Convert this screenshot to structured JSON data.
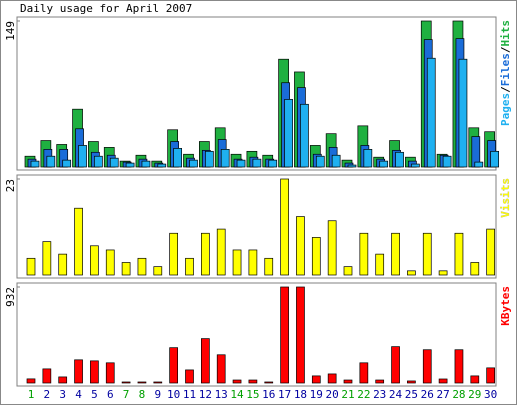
{
  "chart_data": [
    {
      "type": "bar",
      "title": "Daily usage for April 2007",
      "series": [
        {
          "name": "Hits",
          "color": "#1fb040",
          "values": [
            11,
            27,
            23,
            59,
            26,
            20,
            6,
            12,
            6,
            38,
            13,
            26,
            40,
            13,
            16,
            12,
            110,
            97,
            22,
            34,
            7,
            42,
            10,
            27,
            10,
            149,
            13,
            149,
            40,
            36
          ]
        },
        {
          "name": "Files",
          "color": "#1a6cd8",
          "values": [
            8,
            18,
            18,
            39,
            15,
            12,
            5,
            8,
            4,
            26,
            9,
            17,
            28,
            8,
            10,
            8,
            86,
            81,
            13,
            20,
            4,
            22,
            8,
            17,
            6,
            130,
            12,
            131,
            31,
            27
          ]
        },
        {
          "name": "Pages",
          "color": "#1fb0f0",
          "values": [
            6,
            11,
            7,
            22,
            11,
            9,
            4,
            6,
            3,
            19,
            7,
            16,
            18,
            7,
            8,
            7,
            69,
            64,
            11,
            12,
            2,
            18,
            6,
            15,
            3,
            111,
            11,
            110,
            5,
            16
          ]
        }
      ],
      "legend_separator": "/",
      "ylim": [
        0,
        149
      ],
      "yticks": [
        149
      ]
    },
    {
      "type": "bar",
      "series": [
        {
          "name": "Visits",
          "color": "#ffff00",
          "values": [
            4,
            8,
            5,
            16,
            7,
            6,
            3,
            4,
            2,
            10,
            4,
            10,
            11,
            6,
            6,
            4,
            23,
            14,
            9,
            13,
            2,
            10,
            5,
            10,
            1,
            10,
            1,
            10,
            3,
            11
          ]
        }
      ],
      "ylim": [
        0,
        23
      ],
      "yticks": [
        23
      ]
    },
    {
      "type": "bar",
      "categories": [
        "1",
        "2",
        "3",
        "4",
        "5",
        "6",
        "7",
        "8",
        "9",
        "10",
        "11",
        "12",
        "13",
        "14",
        "15",
        "16",
        "17",
        "18",
        "19",
        "20",
        "21",
        "22",
        "23",
        "24",
        "25",
        "26",
        "27",
        "28",
        "29",
        "30"
      ],
      "category_colors": [
        "#00a000",
        "#0000a0",
        "#0000a0",
        "#0000a0",
        "#0000a0",
        "#0000a0",
        "#00a000",
        "#00a000",
        "#0000a0",
        "#0000a0",
        "#0000a0",
        "#0000a0",
        "#0000a0",
        "#00a000",
        "#00a000",
        "#0000a0",
        "#0000a0",
        "#0000a0",
        "#0000a0",
        "#0000a0",
        "#00a000",
        "#00a000",
        "#0000a0",
        "#0000a0",
        "#0000a0",
        "#0000a0",
        "#0000a0",
        "#00a000",
        "#00a000",
        "#0000a0"
      ],
      "series": [
        {
          "name": "KBytes",
          "color": "#ff0000",
          "values": [
            40,
            137,
            59,
            225,
            215,
            196,
            10,
            10,
            10,
            343,
            127,
            431,
            274,
            29,
            29,
            10,
            932,
            932,
            69,
            88,
            29,
            196,
            29,
            353,
            20,
            323,
            39,
            323,
            69,
            147
          ]
        }
      ],
      "ylim": [
        0,
        932
      ],
      "yticks": [
        932
      ]
    }
  ]
}
